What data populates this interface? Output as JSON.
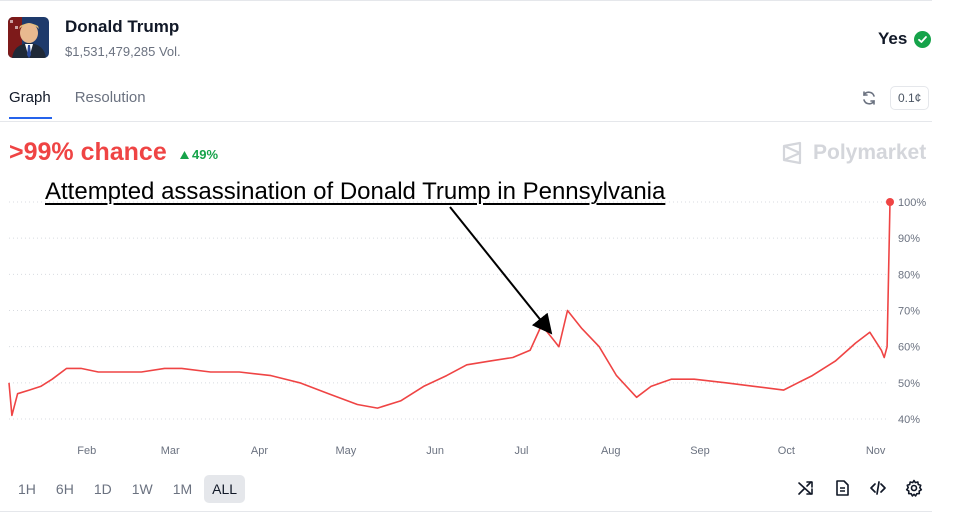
{
  "market": {
    "title": "Donald Trump",
    "volume": "$1,531,479,285 Vol.",
    "outcome": "Yes"
  },
  "tabs": [
    {
      "label": "Graph",
      "active": true
    },
    {
      "label": "Resolution",
      "active": false
    }
  ],
  "precision": "0.1¢",
  "chance": ">99% chance",
  "delta": "49%",
  "brand": "Polymarket",
  "annotation": "Attempted assassination of Donald Trump in Pennsylvania",
  "time_ranges": [
    {
      "label": "1H",
      "active": false
    },
    {
      "label": "6H",
      "active": false
    },
    {
      "label": "1D",
      "active": false
    },
    {
      "label": "1W",
      "active": false
    },
    {
      "label": "1M",
      "active": false
    },
    {
      "label": "ALL",
      "active": true
    }
  ],
  "icons": [
    "refresh-icon",
    "triangle-up-icon",
    "polymarket-logo-icon",
    "shuffle-icon",
    "document-icon",
    "code-icon",
    "gear-icon",
    "check-circle-icon"
  ],
  "colors": {
    "line": "#ef4444",
    "positive": "#16a34a",
    "accent": "#2563eb"
  },
  "chart_data": {
    "type": "line",
    "x_ticks": [
      "Feb",
      "Mar",
      "Apr",
      "May",
      "Jun",
      "Jul",
      "Aug",
      "Sep",
      "Oct",
      "Nov"
    ],
    "y_ticks": [
      "40%",
      "50%",
      "60%",
      "70%",
      "80%",
      "90%",
      "100%"
    ],
    "ylim": [
      40,
      100
    ],
    "grid": true,
    "series": [
      {
        "x": [
          "2024-01-05",
          "2024-01-06",
          "2024-01-08",
          "2024-01-12",
          "2024-01-16",
          "2024-01-20",
          "2024-01-25",
          "2024-01-30",
          "2024-02-05",
          "2024-02-12",
          "2024-02-20",
          "2024-02-28",
          "2024-03-05",
          "2024-03-15",
          "2024-03-25",
          "2024-04-05",
          "2024-04-15",
          "2024-04-25",
          "2024-05-05",
          "2024-05-12",
          "2024-05-20",
          "2024-05-28",
          "2024-06-05",
          "2024-06-12",
          "2024-06-20",
          "2024-06-28",
          "2024-07-04",
          "2024-07-08",
          "2024-07-12",
          "2024-07-14",
          "2024-07-17",
          "2024-07-22",
          "2024-07-28",
          "2024-08-03",
          "2024-08-10",
          "2024-08-15",
          "2024-08-22",
          "2024-08-30",
          "2024-09-10",
          "2024-09-20",
          "2024-09-30",
          "2024-10-05",
          "2024-10-10",
          "2024-10-18",
          "2024-10-25",
          "2024-10-30",
          "2024-11-03",
          "2024-11-04",
          "2024-11-05",
          "2024-11-06"
        ],
        "y": [
          50,
          41,
          47,
          48,
          49,
          51,
          54,
          54,
          53,
          53,
          53,
          54,
          54,
          53,
          53,
          52,
          50,
          47,
          44,
          43,
          45,
          49,
          52,
          55,
          56,
          57,
          59,
          66,
          62,
          60,
          70,
          65,
          60,
          52,
          46,
          49,
          51,
          51,
          50,
          49,
          48,
          50,
          52,
          56,
          61,
          64,
          59,
          57,
          60,
          100
        ]
      }
    ]
  }
}
